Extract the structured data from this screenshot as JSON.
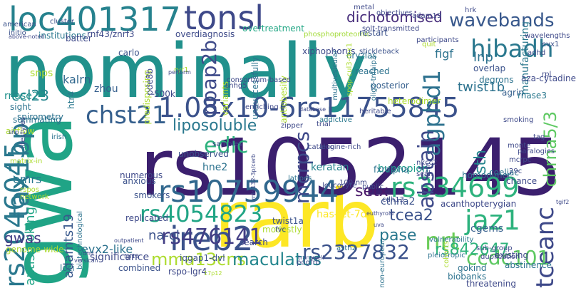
{
  "words": [
    {
      "text": "nominally",
      "color": "#21918c",
      "vertical": false
    },
    {
      "text": "rarb",
      "color": "#fde725",
      "vertical": false
    },
    {
      "text": "rs1052145",
      "color": "#3b1f6e",
      "vertical": false
    },
    {
      "text": "gwa",
      "color": "#20a486",
      "vertical": true
    },
    {
      "text": "loc401317",
      "color": "#26828e",
      "vertical": false
    },
    {
      "text": "tonsl",
      "color": "#3e4989",
      "vertical": false
    },
    {
      "text": "1.08x10-6rs11755845",
      "color": "#3b528b",
      "vertical": false
    },
    {
      "text": "rs10759944",
      "color": "#31688e",
      "vertical": false
    },
    {
      "text": "rs2046045",
      "color": "#2a788e",
      "vertical": true
    },
    {
      "text": "rs4054823",
      "color": "#21a585",
      "vertical": false
    },
    {
      "text": "rs334699",
      "color": "#2db27d",
      "vertical": false
    },
    {
      "text": "ireb2",
      "color": "#3b528b",
      "vertical": false
    },
    {
      "text": "chst21",
      "color": "#355f8d",
      "vertical": false
    },
    {
      "text": "agphd1",
      "color": "#2c718e",
      "vertical": true
    },
    {
      "text": "hibadh",
      "color": "#2a788e",
      "vertical": false
    },
    {
      "text": "wavebands",
      "color": "#38588c",
      "vertical": false
    },
    {
      "text": "dichotomised",
      "color": "#472d7b",
      "vertical": false
    },
    {
      "text": "ppap2b",
      "color": "#3e4a89",
      "vertical": true
    },
    {
      "text": "tax1bp",
      "color": "#2a788e",
      "vertical": true
    },
    {
      "text": "rs476141",
      "color": "#433e85",
      "vertical": false
    },
    {
      "text": "jaz1",
      "color": "#2db27d",
      "vertical": false
    },
    {
      "text": "nrt",
      "color": "#6ccd5a",
      "vertical": false
    },
    {
      "text": "tceanc",
      "color": "#3e4989",
      "vertical": true
    },
    {
      "text": "ccdc101",
      "color": "#5ec962",
      "vertical": false
    },
    {
      "text": "rs2327832",
      "color": "#3b528b",
      "vertical": false
    },
    {
      "text": "mma13cns",
      "color": "#addc30",
      "vertical": false
    },
    {
      "text": "maculatus",
      "color": "#24868e",
      "vertical": false
    },
    {
      "text": "rs842647",
      "color": "#2fb47c",
      "vertical": false
    },
    {
      "text": "chrna5/3",
      "color": "#5ec962",
      "vertical": true
    },
    {
      "text": "liposoluble",
      "color": "#2a788e",
      "vertical": false
    },
    {
      "text": "edic",
      "color": "#2db27d",
      "vertical": false
    },
    {
      "text": "mcrpcs",
      "color": "#3e4989",
      "vertical": true
    },
    {
      "text": "abstain",
      "color": "#3e4989",
      "vertical": true
    },
    {
      "text": "setx",
      "color": "#481769",
      "vertical": false
    },
    {
      "text": "sth",
      "color": "#25858e",
      "vertical": true
    },
    {
      "text": "tcea2",
      "color": "#3b528b",
      "vertical": false
    },
    {
      "text": "pase",
      "color": "#2a788e",
      "vertical": false
    },
    {
      "text": "twist1b",
      "color": "#2c728e",
      "vertical": false
    },
    {
      "text": "lnp",
      "color": "#2c728e",
      "vertical": false
    },
    {
      "text": "figf",
      "color": "#2c728e",
      "vertical": false
    },
    {
      "text": "ccl23",
      "color": "#24868e",
      "vertical": false
    },
    {
      "text": "kalrn",
      "color": "#31688e",
      "vertical": false
    },
    {
      "text": "rnase2",
      "color": "#21918c",
      "vertical": false
    },
    {
      "text": "rnase3",
      "color": "#2a788e",
      "vertical": false
    },
    {
      "text": "antismoking",
      "color": "#20a486",
      "vertical": true
    },
    {
      "text": "adamts19",
      "color": "#38588c",
      "vertical": true
    },
    {
      "text": "gwas",
      "color": "#433e85",
      "vertical": false
    },
    {
      "text": "genome-wide",
      "color": "#addc30",
      "vertical": false
    },
    {
      "text": "evx2-like",
      "color": "#2c728e",
      "vertical": false
    },
    {
      "text": "na-cl",
      "color": "#3b528b",
      "vertical": false
    },
    {
      "text": "hne2",
      "color": "#2c728e",
      "vertical": false
    },
    {
      "text": "keratan",
      "color": "#26828e",
      "vertical": false
    },
    {
      "text": "bupropion",
      "color": "#1f9a8a",
      "vertical": false
    },
    {
      "text": "fxralpha",
      "color": "#2c728e",
      "vertical": false
    },
    {
      "text": "ctnna2",
      "color": "#3b528b",
      "vertical": false
    },
    {
      "text": "emrs",
      "color": "#2a788e",
      "vertical": false
    },
    {
      "text": "snps",
      "color": "#addc30",
      "vertical": false
    },
    {
      "text": "zhou",
      "color": "#355f8d",
      "vertical": false
    },
    {
      "text": "overdiagnosis",
      "color": "#3e4a89",
      "vertical": false
    },
    {
      "text": "institutions",
      "color": "#2a788e",
      "vertical": false
    },
    {
      "text": "rnf43/znrf3",
      "color": "#3e4989",
      "vertical": false
    },
    {
      "text": "initio",
      "color": "#3b528b",
      "vertical": false
    },
    {
      "text": "american",
      "color": "#3b528b",
      "vertical": false
    },
    {
      "text": "cluster",
      "color": "#3b528b",
      "vertical": false
    },
    {
      "text": "overtreatment",
      "color": "#22a785",
      "vertical": false
    },
    {
      "text": "phosphoproteomic",
      "color": "#a2da37",
      "vertical": false
    },
    {
      "text": "restart",
      "color": "#3b528b",
      "vertical": false
    },
    {
      "text": "stickleback",
      "color": "#3b528b",
      "vertical": false
    },
    {
      "text": "xiphophorus",
      "color": "#3e4989",
      "vertical": false
    },
    {
      "text": "oryzias",
      "color": "#2c728e",
      "vertical": false
    },
    {
      "text": "reached",
      "color": "#2c728e",
      "vertical": false
    },
    {
      "text": "posterior",
      "color": "#355f8d",
      "vertical": false
    },
    {
      "text": "degrons",
      "color": "#2c728e",
      "vertical": false
    },
    {
      "text": "overlap",
      "color": "#3b528b",
      "vertical": false
    },
    {
      "text": "agrin",
      "color": "#355f8d",
      "vertical": false
    },
    {
      "text": "manufacturing",
      "color": "#2a788e",
      "vertical": true
    },
    {
      "text": "heterodimer",
      "color": "#addc30",
      "vertical": false
    },
    {
      "text": "addictive",
      "color": "#2a788e",
      "vertical": false
    },
    {
      "text": "heritable",
      "color": "#3e4989",
      "vertical": false
    },
    {
      "text": "unobserved",
      "color": "#3b528b",
      "vertical": false
    },
    {
      "text": "anxious",
      "color": "#3b528b",
      "vertical": false
    },
    {
      "text": "numerous",
      "color": "#3e4989",
      "vertical": false
    },
    {
      "text": "smokers",
      "color": "#3b528b",
      "vertical": false
    },
    {
      "text": "replicated",
      "color": "#3e4989",
      "vertical": false
    },
    {
      "text": "latipes",
      "color": "#2c728e",
      "vertical": false
    },
    {
      "text": "coeliac",
      "color": "#2c728e",
      "vertical": false
    },
    {
      "text": "chance",
      "color": "#3e4989",
      "vertical": false
    },
    {
      "text": "homodimer",
      "color": "#2c728e",
      "vertical": false
    },
    {
      "text": "acanthopterygian",
      "color": "#3e4989",
      "vertical": false
    },
    {
      "text": "has-let-7d",
      "color": "#fde725",
      "vertical": false
    },
    {
      "text": "twist1a",
      "color": "#3b528b",
      "vertical": false
    },
    {
      "text": "cgems",
      "color": "#355f8d",
      "vertical": false
    },
    {
      "text": "existing",
      "color": "#3e4989",
      "vertical": false
    },
    {
      "text": "abstinence",
      "color": "#2c728e",
      "vertical": false
    },
    {
      "text": "gokind",
      "color": "#2c728e",
      "vertical": false
    },
    {
      "text": "biobanks",
      "color": "#2c728e",
      "vertical": false
    },
    {
      "text": "threatening",
      "color": "#3e4989",
      "vertical": false
    },
    {
      "text": "significance",
      "color": "#3e4989",
      "vertical": false
    },
    {
      "text": "biotechnological",
      "color": "#2c728e",
      "vertical": true
    },
    {
      "text": "iqgap1-dvl",
      "color": "#3b528b",
      "vertical": false
    },
    {
      "text": "rspo-lgr4",
      "color": "#3e4989",
      "vertical": false
    },
    {
      "text": "combined",
      "color": "#3b528b",
      "vertical": false
    },
    {
      "text": "loci",
      "color": "#2c728e",
      "vertical": false
    },
    {
      "text": "search",
      "color": "#3e4989",
      "vertical": false
    },
    {
      "text": "modestly",
      "color": "#addc30",
      "vertical": false
    },
    {
      "text": "vulnerability",
      "color": "#2a788e",
      "vertical": false
    },
    {
      "text": "airflow",
      "color": "#addc30",
      "vertical": false
    },
    {
      "text": "spirometry",
      "color": "#2c728e",
      "vertical": false
    },
    {
      "text": "summating",
      "color": "#2c728e",
      "vertical": false
    },
    {
      "text": "sight",
      "color": "#2c728e",
      "vertical": false
    },
    {
      "text": "batter",
      "color": "#3e4989",
      "vertical": false
    },
    {
      "text": "htr4",
      "color": "#2a788e",
      "vertical": true
    },
    {
      "text": "500k",
      "color": "#3e4989",
      "vertical": false
    },
    {
      "text": "carlo",
      "color": "#3b528b",
      "vertical": false
    },
    {
      "text": "predisposing",
      "color": "#addc30",
      "vertical": true
    },
    {
      "text": "variants",
      "color": "#addc30",
      "vertical": true
    },
    {
      "text": "unsuccessfully",
      "color": "#2c728e",
      "vertical": true
    },
    {
      "text": "antiobesity",
      "color": "#addc30",
      "vertical": true
    },
    {
      "text": "multivesicular",
      "color": "#2c728e",
      "vertical": true
    },
    {
      "text": "spop-cul3-rbx1",
      "color": "#addc30",
      "vertical": true
    },
    {
      "text": "olig2-tnfaip3",
      "color": "#2c728e",
      "vertical": true
    },
    {
      "text": "pde8b",
      "color": "#3e4989",
      "vertical": true
    },
    {
      "text": "ryr1",
      "color": "#addc30",
      "vertical": false
    },
    {
      "text": "monte",
      "color": "#3e4989",
      "vertical": false
    },
    {
      "text": "aza-cytadine",
      "color": "#3e4989",
      "vertical": false
    },
    {
      "text": "tag",
      "color": "#3e4989",
      "vertical": false
    },
    {
      "text": "rpl",
      "color": "#3e4989",
      "vertical": false
    },
    {
      "text": "evx1",
      "color": "#3b528b",
      "vertical": false
    },
    {
      "text": "metal",
      "color": "#3e4989",
      "vertical": false
    },
    {
      "text": "adam19",
      "color": "#3e4989",
      "vertical": false
    },
    {
      "text": "nkcc2",
      "color": "#3e4989",
      "vertical": false
    },
    {
      "text": "scan",
      "color": "#3e4989",
      "vertical": false
    },
    {
      "text": "cdh13",
      "color": "#3e4989",
      "vertical": false
    },
    {
      "text": "pleiotropic",
      "color": "#2c728e",
      "vertical": false
    },
    {
      "text": "cohorts",
      "color": "#addc30",
      "vertical": true
    },
    {
      "text": "non-european",
      "color": "#2c728e",
      "vertical": true
    },
    {
      "text": "astn2",
      "color": "#2c728e",
      "vertical": false
    },
    {
      "text": "pdgfrb",
      "color": "#3e4989",
      "vertical": false
    },
    {
      "text": "fvc",
      "color": "#3e4989",
      "vertical": false
    },
    {
      "text": "leucocyte",
      "color": "#3e4989",
      "vertical": false
    },
    {
      "text": "100-nm",
      "color": "#3e4989",
      "vertical": false
    },
    {
      "text": "network",
      "color": "#addc30",
      "vertical": false
    },
    {
      "text": "rspos",
      "color": "#addc30",
      "vertical": false
    },
    {
      "text": "matrix-in",
      "color": "#addc30",
      "vertical": false
    },
    {
      "text": "lifestyles",
      "color": "#3e4989",
      "vertical": true
    },
    {
      "text": "irish",
      "color": "#2c728e",
      "vertical": false
    },
    {
      "text": "snhg5",
      "color": "#3e4989",
      "vertical": false
    },
    {
      "text": "consortium-based",
      "color": "#3e4989",
      "vertical": false
    },
    {
      "text": "enriching",
      "color": "#3e4989",
      "vertical": false
    },
    {
      "text": "zipper",
      "color": "#3e4989",
      "vertical": false
    },
    {
      "text": "trial",
      "color": "#3e4989",
      "vertical": false
    },
    {
      "text": "catalog",
      "color": "#3e4989",
      "vertical": false
    },
    {
      "text": "samples",
      "color": "#3e4989",
      "vertical": false
    },
    {
      "text": "leucine-rich",
      "color": "#3e4989",
      "vertical": false
    },
    {
      "text": "public",
      "color": "#3e4989",
      "vertical": false
    },
    {
      "text": "item",
      "color": "#3e4989",
      "vertical": true
    },
    {
      "text": "mcrpc",
      "color": "#3e4989",
      "vertical": false
    },
    {
      "text": "29c",
      "color": "#3e4989",
      "vertical": false
    },
    {
      "text": "paralogies",
      "color": "#3e4989",
      "vertical": false
    },
    {
      "text": "sub-group",
      "color": "#3e4989",
      "vertical": false
    },
    {
      "text": "duplication",
      "color": "#3e4989",
      "vertical": false
    },
    {
      "text": "solt-transmitted",
      "color": "#3e4989",
      "vertical": false
    },
    {
      "text": "participants",
      "color": "#3e4989",
      "vertical": false
    },
    {
      "text": "quit",
      "color": "#addc30",
      "vertical": false
    },
    {
      "text": "wavelengths",
      "color": "#3e4989",
      "vertical": false
    },
    {
      "text": "adhd",
      "color": "#3e4989",
      "vertical": false
    },
    {
      "text": "smoking",
      "color": "#3e4989",
      "vertical": false
    },
    {
      "text": "hrk",
      "color": "#3e4989",
      "vertical": false
    },
    {
      "text": "objectives",
      "color": "#3e4989",
      "vertical": false
    },
    {
      "text": "above-noted",
      "color": "#3e4989",
      "vertical": false
    },
    {
      "text": "snp",
      "color": "#3e4989",
      "vertical": false
    },
    {
      "text": "dmr",
      "color": "#3e4989",
      "vertical": false
    },
    {
      "text": "fgf18",
      "color": "#3e4989",
      "vertical": false
    },
    {
      "text": "uva",
      "color": "#3e4989",
      "vertical": false
    },
    {
      "text": "17p12",
      "color": "#addc30",
      "vertical": false
    },
    {
      "text": "euthyroid",
      "color": "#3e4989",
      "vertical": false
    },
    {
      "text": "transwell",
      "color": "#3e4989",
      "vertical": false
    },
    {
      "text": "versican",
      "color": "#3e4989",
      "vertical": false
    },
    {
      "text": "outpatient",
      "color": "#3e4989",
      "vertical": false
    },
    {
      "text": "perform",
      "color": "#3e4989",
      "vertical": false
    },
    {
      "text": "database",
      "color": "#3e4989",
      "vertical": false
    },
    {
      "text": "tgif2",
      "color": "#3e4989",
      "vertical": false
    },
    {
      "text": "mir-132-3p/cerb",
      "color": "#3e4989",
      "vertical": true
    },
    {
      "text": "ilk",
      "color": "#3e4989",
      "vertical": false
    }
  ]
}
